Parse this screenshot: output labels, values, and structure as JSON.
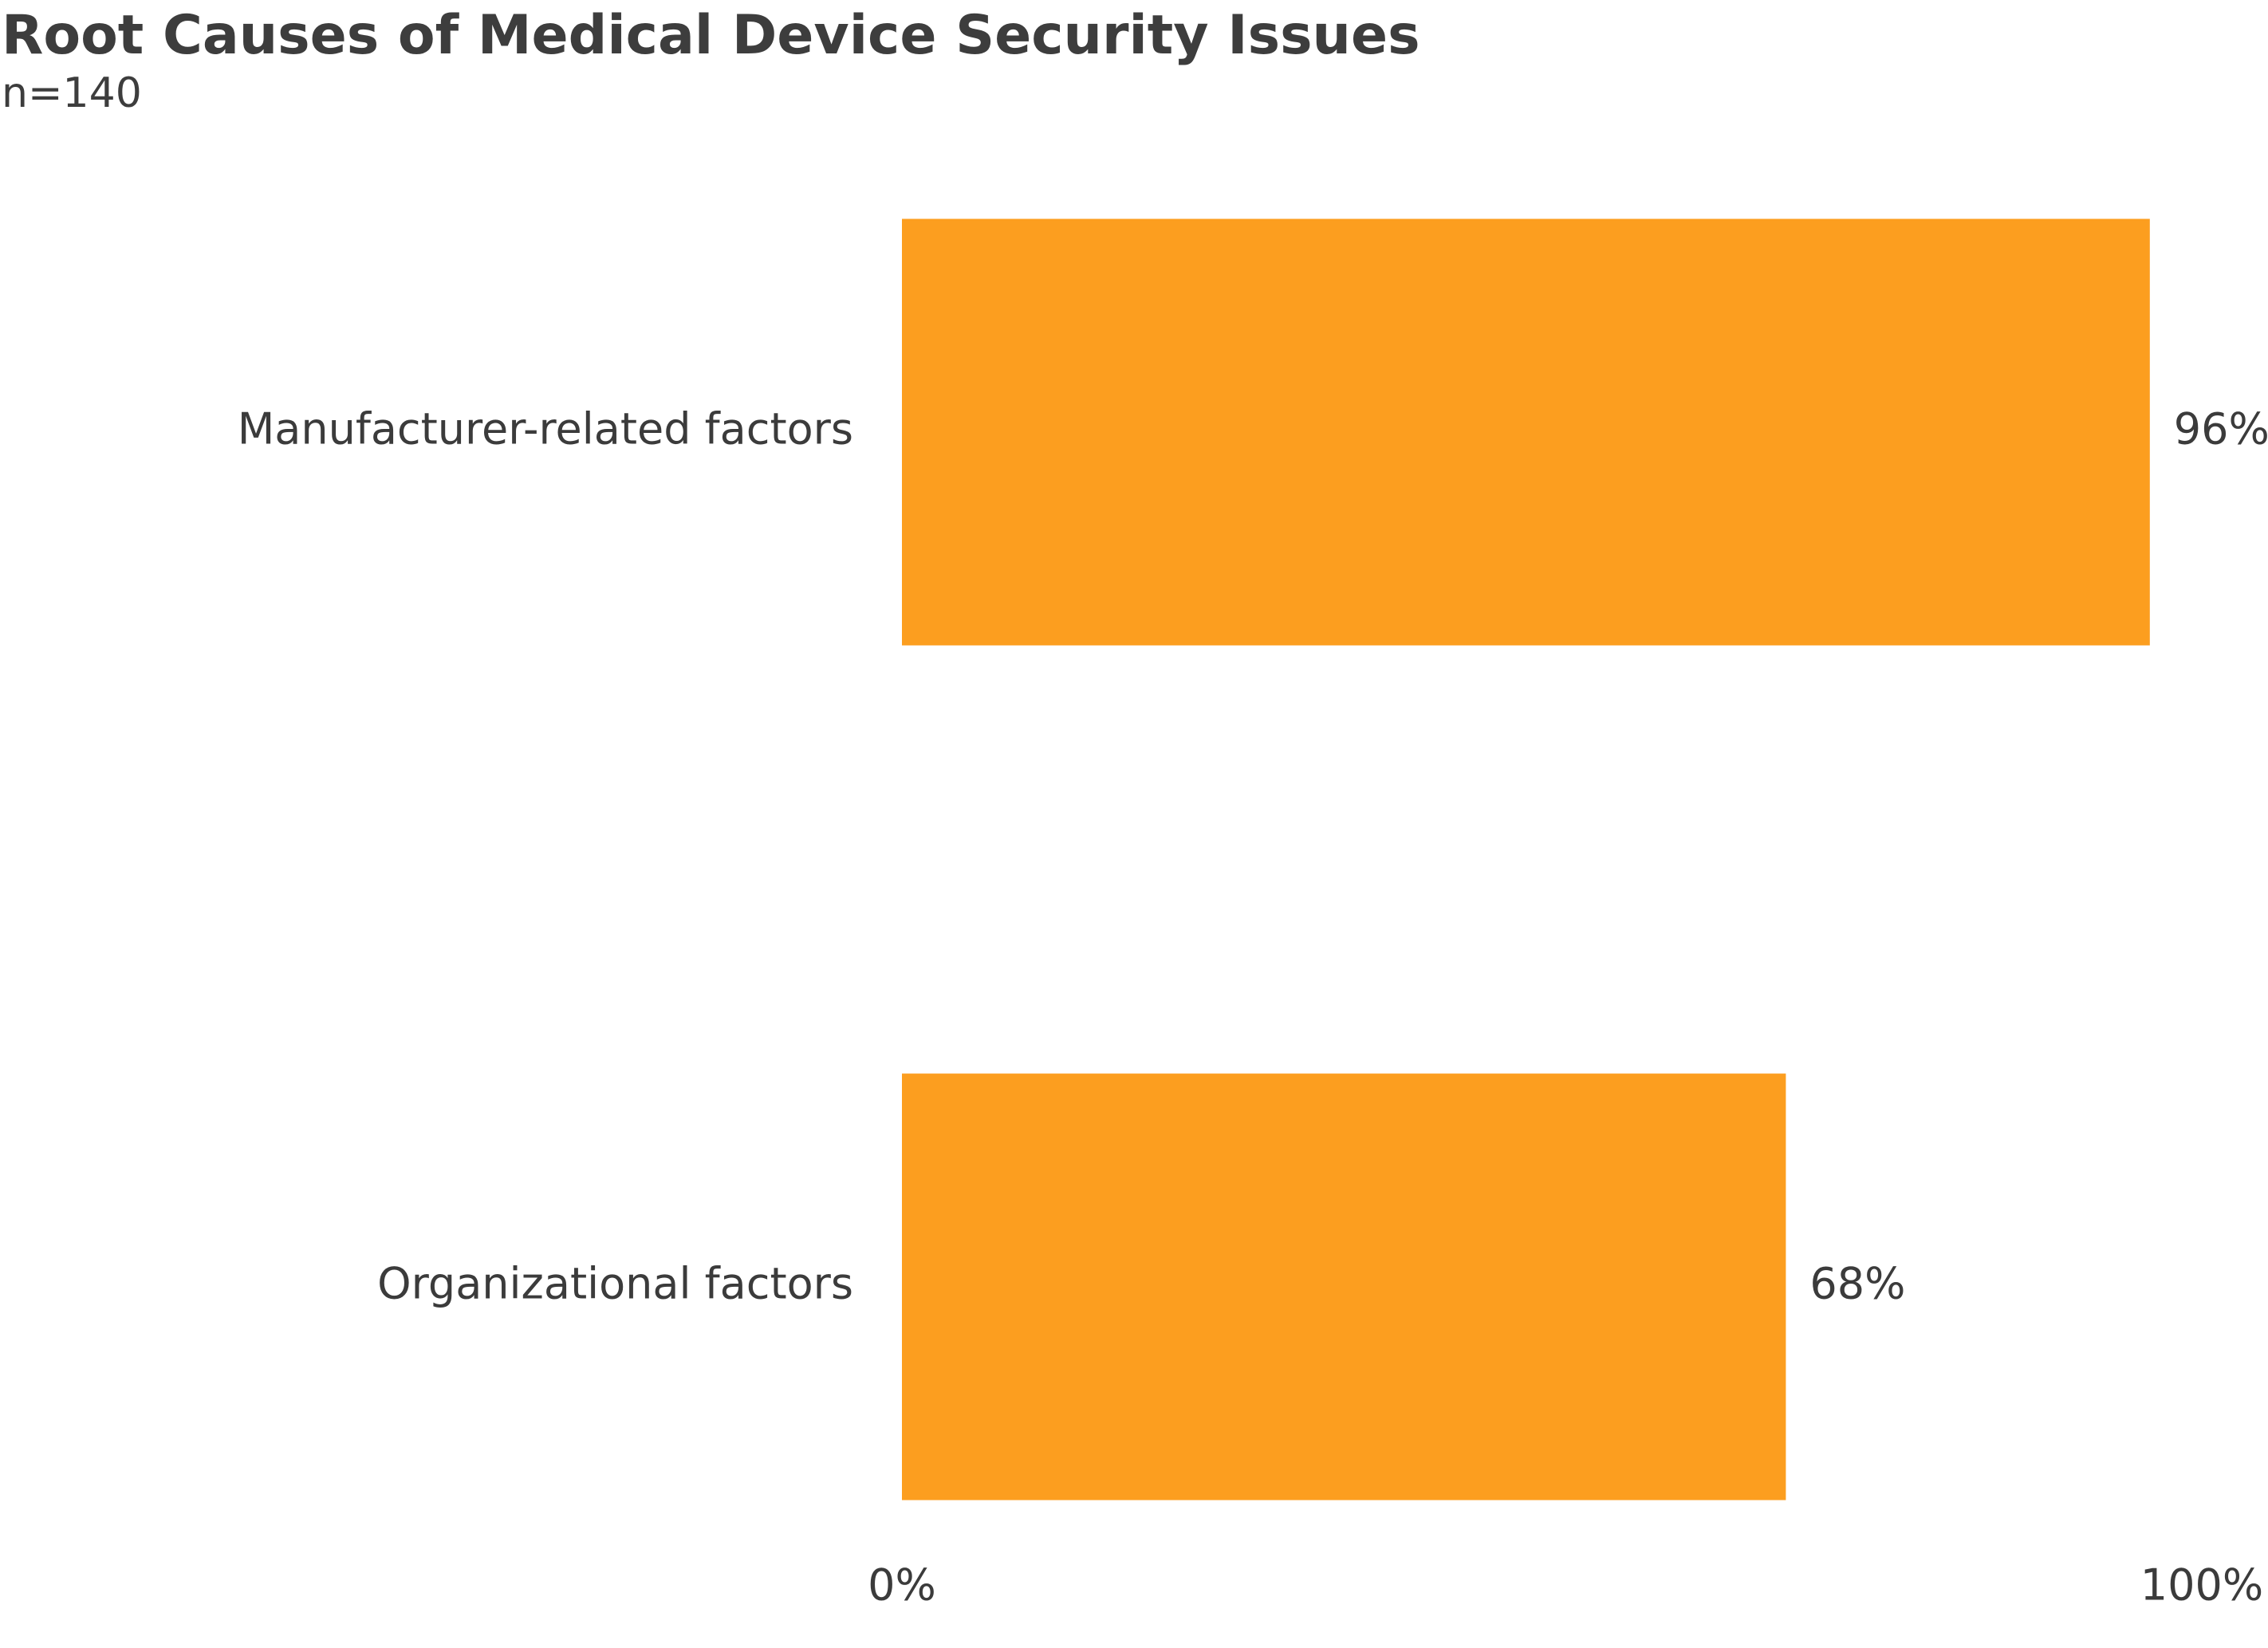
{
  "title": "Root Causes of Medical Device Security Issues",
  "subtitle": "n=140",
  "colors": {
    "bar": "#fc9e1f",
    "text": "#3b3b3b"
  },
  "chart_data": {
    "type": "bar",
    "orientation": "horizontal",
    "title": "Root Causes of Medical Device Security Issues",
    "subtitle": "n=140",
    "categories": [
      "Manufacturer-related factors",
      "Organizational factors"
    ],
    "values": [
      96,
      68
    ],
    "value_labels": [
      "96%",
      "68%"
    ],
    "xlim": [
      0,
      100
    ],
    "x_ticks": [
      0,
      100
    ],
    "x_tick_labels": [
      "0%",
      "100%"
    ],
    "xlabel": "",
    "ylabel": "",
    "grid": false,
    "legend": "none"
  }
}
